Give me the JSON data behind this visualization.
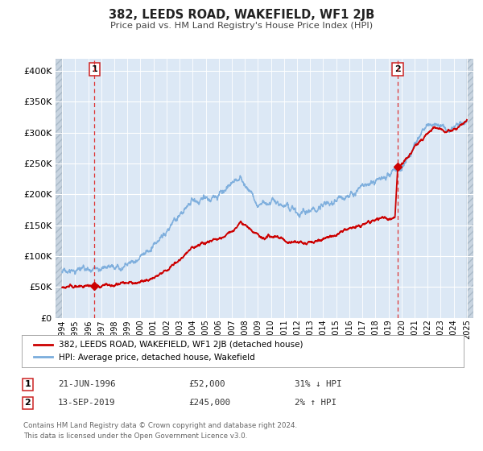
{
  "title": "382, LEEDS ROAD, WAKEFIELD, WF1 2JB",
  "subtitle": "Price paid vs. HM Land Registry's House Price Index (HPI)",
  "xlim": [
    1993.5,
    2025.5
  ],
  "ylim": [
    0,
    420000
  ],
  "yticks": [
    0,
    50000,
    100000,
    150000,
    200000,
    250000,
    300000,
    350000,
    400000
  ],
  "xtick_years": [
    1994,
    1995,
    1996,
    1997,
    1998,
    1999,
    2000,
    2001,
    2002,
    2003,
    2004,
    2005,
    2006,
    2007,
    2008,
    2009,
    2010,
    2011,
    2012,
    2013,
    2014,
    2015,
    2016,
    2017,
    2018,
    2019,
    2020,
    2021,
    2022,
    2023,
    2024,
    2025
  ],
  "sale1_x": 1996.47,
  "sale1_y": 52000,
  "sale2_x": 2019.71,
  "sale2_y": 245000,
  "red_line_color": "#cc0000",
  "blue_line_color": "#7aacdc",
  "marker_color": "#cc0000",
  "vline1_color": "#dd4444",
  "vline2_color": "#aaaaaa",
  "plot_bg_color": "#dce8f5",
  "hatch_color": "#b8c8d8",
  "grid_color": "#c8d8e8",
  "legend_label_red": "382, LEEDS ROAD, WAKEFIELD, WF1 2JB (detached house)",
  "legend_label_blue": "HPI: Average price, detached house, Wakefield",
  "annotation1_date": "21-JUN-1996",
  "annotation1_price": "£52,000",
  "annotation1_hpi": "31% ↓ HPI",
  "annotation2_date": "13-SEP-2019",
  "annotation2_price": "£245,000",
  "annotation2_hpi": "2% ↑ HPI",
  "footer1": "Contains HM Land Registry data © Crown copyright and database right 2024.",
  "footer2": "This data is licensed under the Open Government Licence v3.0."
}
